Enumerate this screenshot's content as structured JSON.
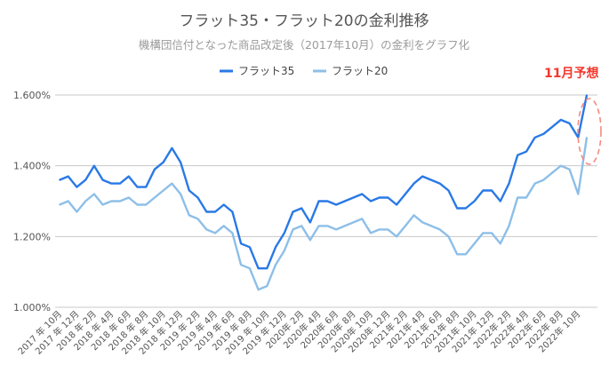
{
  "chart_data": {
    "type": "line",
    "title": "フラット35・フラット20の金利推移",
    "subtitle": "機構団信付となった商品改定後（2017年10月）の金利をグラフ化",
    "xlabel": "",
    "ylabel": "",
    "ylim": [
      1.0,
      1.6
    ],
    "y_ticks": [
      1.0,
      1.2,
      1.4,
      1.6
    ],
    "y_tick_labels": [
      "1.000%",
      "1.200%",
      "1.400%",
      "1.600%"
    ],
    "grid": true,
    "legend_position": "top-center",
    "x_tick_every": 2,
    "x_tick_labels": [
      "2017 年 10月",
      "2017 年 12月",
      "2018 年 2月",
      "2018 年 4月",
      "2018 年 6月",
      "2018 年 8月",
      "2018 年 10月",
      "2018 年 12月",
      "2019 年 2月",
      "2019 年 4月",
      "2019 年 6月",
      "2019 年 8月",
      "2019 年 10月",
      "2019 年 12月",
      "2020年 2月",
      "2020年 4月",
      "2020年 6月",
      "2020年 8月",
      "2020年 10月",
      "2020年 12月",
      "2021年 2月",
      "2021年 4月",
      "2021年 6月",
      "2021年 8月",
      "2021年 10月",
      "2021年 12月",
      "2022年 2月",
      "2022年 4月",
      "2022年 6月",
      "2022年 8月",
      "2022年 10月"
    ],
    "series": [
      {
        "name": "フラット35",
        "color": "#2979e6",
        "values": [
          1.36,
          1.37,
          1.34,
          1.36,
          1.4,
          1.36,
          1.35,
          1.35,
          1.37,
          1.34,
          1.34,
          1.39,
          1.41,
          1.45,
          1.41,
          1.33,
          1.31,
          1.27,
          1.27,
          1.29,
          1.27,
          1.18,
          1.17,
          1.11,
          1.11,
          1.17,
          1.21,
          1.27,
          1.28,
          1.24,
          1.3,
          1.3,
          1.29,
          1.3,
          1.31,
          1.32,
          1.3,
          1.31,
          1.31,
          1.29,
          1.32,
          1.35,
          1.37,
          1.36,
          1.35,
          1.33,
          1.28,
          1.28,
          1.3,
          1.33,
          1.33,
          1.3,
          1.35,
          1.43,
          1.44,
          1.48,
          1.49,
          1.51,
          1.53,
          1.52,
          1.48,
          1.6
        ]
      },
      {
        "name": "フラット20",
        "color": "#8dbfe8",
        "values": [
          1.29,
          1.3,
          1.27,
          1.3,
          1.32,
          1.29,
          1.3,
          1.3,
          1.31,
          1.29,
          1.29,
          1.31,
          1.33,
          1.35,
          1.32,
          1.26,
          1.25,
          1.22,
          1.21,
          1.23,
          1.21,
          1.12,
          1.11,
          1.05,
          1.06,
          1.12,
          1.16,
          1.22,
          1.23,
          1.19,
          1.23,
          1.23,
          1.22,
          1.23,
          1.24,
          1.25,
          1.21,
          1.22,
          1.22,
          1.2,
          1.23,
          1.26,
          1.24,
          1.23,
          1.22,
          1.2,
          1.15,
          1.15,
          1.18,
          1.21,
          1.21,
          1.18,
          1.23,
          1.31,
          1.31,
          1.35,
          1.36,
          1.38,
          1.4,
          1.39,
          1.32,
          1.48
        ]
      }
    ],
    "annotation": {
      "text": "11月予想",
      "color": "#f4362b"
    }
  }
}
